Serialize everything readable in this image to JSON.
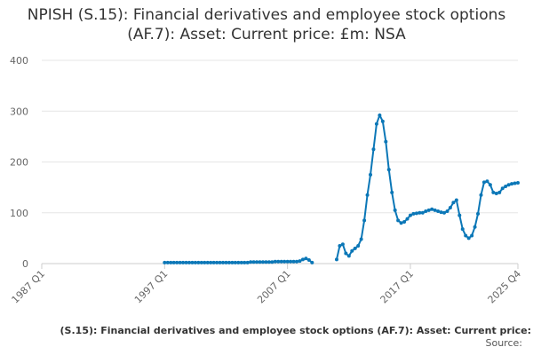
{
  "chart_data": {
    "type": "line",
    "title": "NPISH (S.15): Financial derivatives and employee stock options (AF.7): Asset: Current price: £m: NSA",
    "footer": "(S.15): Financial derivatives and employee stock options (AF.7): Asset: Current price:",
    "source": "Source:",
    "color": "#0b77b7",
    "grid": true,
    "ylim": [
      0,
      400
    ],
    "yticks": [
      0,
      100,
      200,
      300,
      400
    ],
    "categories": [
      "1987 Q1",
      null,
      null,
      null,
      null,
      null,
      null,
      null,
      null,
      null,
      null,
      null,
      null,
      null,
      null,
      null,
      null,
      null,
      null,
      null,
      null,
      null,
      null,
      null,
      null,
      null,
      null,
      null,
      null,
      null,
      null,
      null,
      null,
      null,
      null,
      null,
      null,
      null,
      null,
      null,
      "1997 Q1",
      null,
      null,
      null,
      null,
      null,
      null,
      null,
      null,
      null,
      null,
      null,
      null,
      null,
      null,
      null,
      null,
      null,
      null,
      null,
      null,
      null,
      null,
      null,
      null,
      null,
      null,
      null,
      null,
      null,
      null,
      null,
      null,
      null,
      null,
      null,
      null,
      null,
      null,
      null,
      "2007 Q1",
      null,
      null,
      null,
      null,
      null,
      null,
      null,
      null,
      null,
      null,
      null,
      null,
      null,
      null,
      null,
      null,
      null,
      null,
      null,
      null,
      null,
      null,
      null,
      null,
      null,
      null,
      null,
      null,
      null,
      null,
      null,
      null,
      null,
      null,
      null,
      null,
      null,
      null,
      null,
      "2017 Q1",
      null,
      null,
      null,
      null,
      null,
      null,
      null,
      null,
      null,
      null,
      null,
      null,
      null,
      null,
      null,
      null,
      null,
      null,
      null,
      null,
      null,
      null,
      null,
      null,
      null,
      null,
      null,
      null,
      null,
      null,
      null,
      null,
      null,
      null,
      "2025 Q4"
    ],
    "values": [
      null,
      null,
      null,
      null,
      null,
      null,
      null,
      null,
      null,
      null,
      null,
      null,
      null,
      null,
      null,
      null,
      null,
      null,
      null,
      null,
      null,
      null,
      null,
      null,
      null,
      null,
      null,
      null,
      null,
      null,
      null,
      null,
      null,
      null,
      null,
      null,
      null,
      null,
      null,
      null,
      2,
      2,
      2,
      2,
      2,
      2,
      2,
      2,
      2,
      2,
      2,
      2,
      2,
      2,
      2,
      2,
      2,
      2,
      2,
      2,
      2,
      2,
      2,
      2,
      2,
      2,
      2,
      2,
      3,
      3,
      3,
      3,
      3,
      3,
      3,
      3,
      4,
      4,
      4,
      4,
      4,
      4,
      4,
      4,
      5,
      8,
      10,
      7,
      2,
      null,
      null,
      null,
      null,
      null,
      null,
      null,
      8,
      35,
      38,
      20,
      15,
      25,
      30,
      35,
      48,
      85,
      135,
      175,
      225,
      275,
      292,
      280,
      240,
      185,
      140,
      105,
      85,
      80,
      82,
      88,
      95,
      98,
      99,
      100,
      100,
      103,
      105,
      107,
      105,
      103,
      101,
      100,
      103,
      110,
      120,
      125,
      95,
      68,
      55,
      50,
      55,
      72,
      98,
      135,
      160,
      162,
      155,
      140,
      138,
      140,
      148,
      152,
      155,
      157,
      158,
      159
    ]
  }
}
